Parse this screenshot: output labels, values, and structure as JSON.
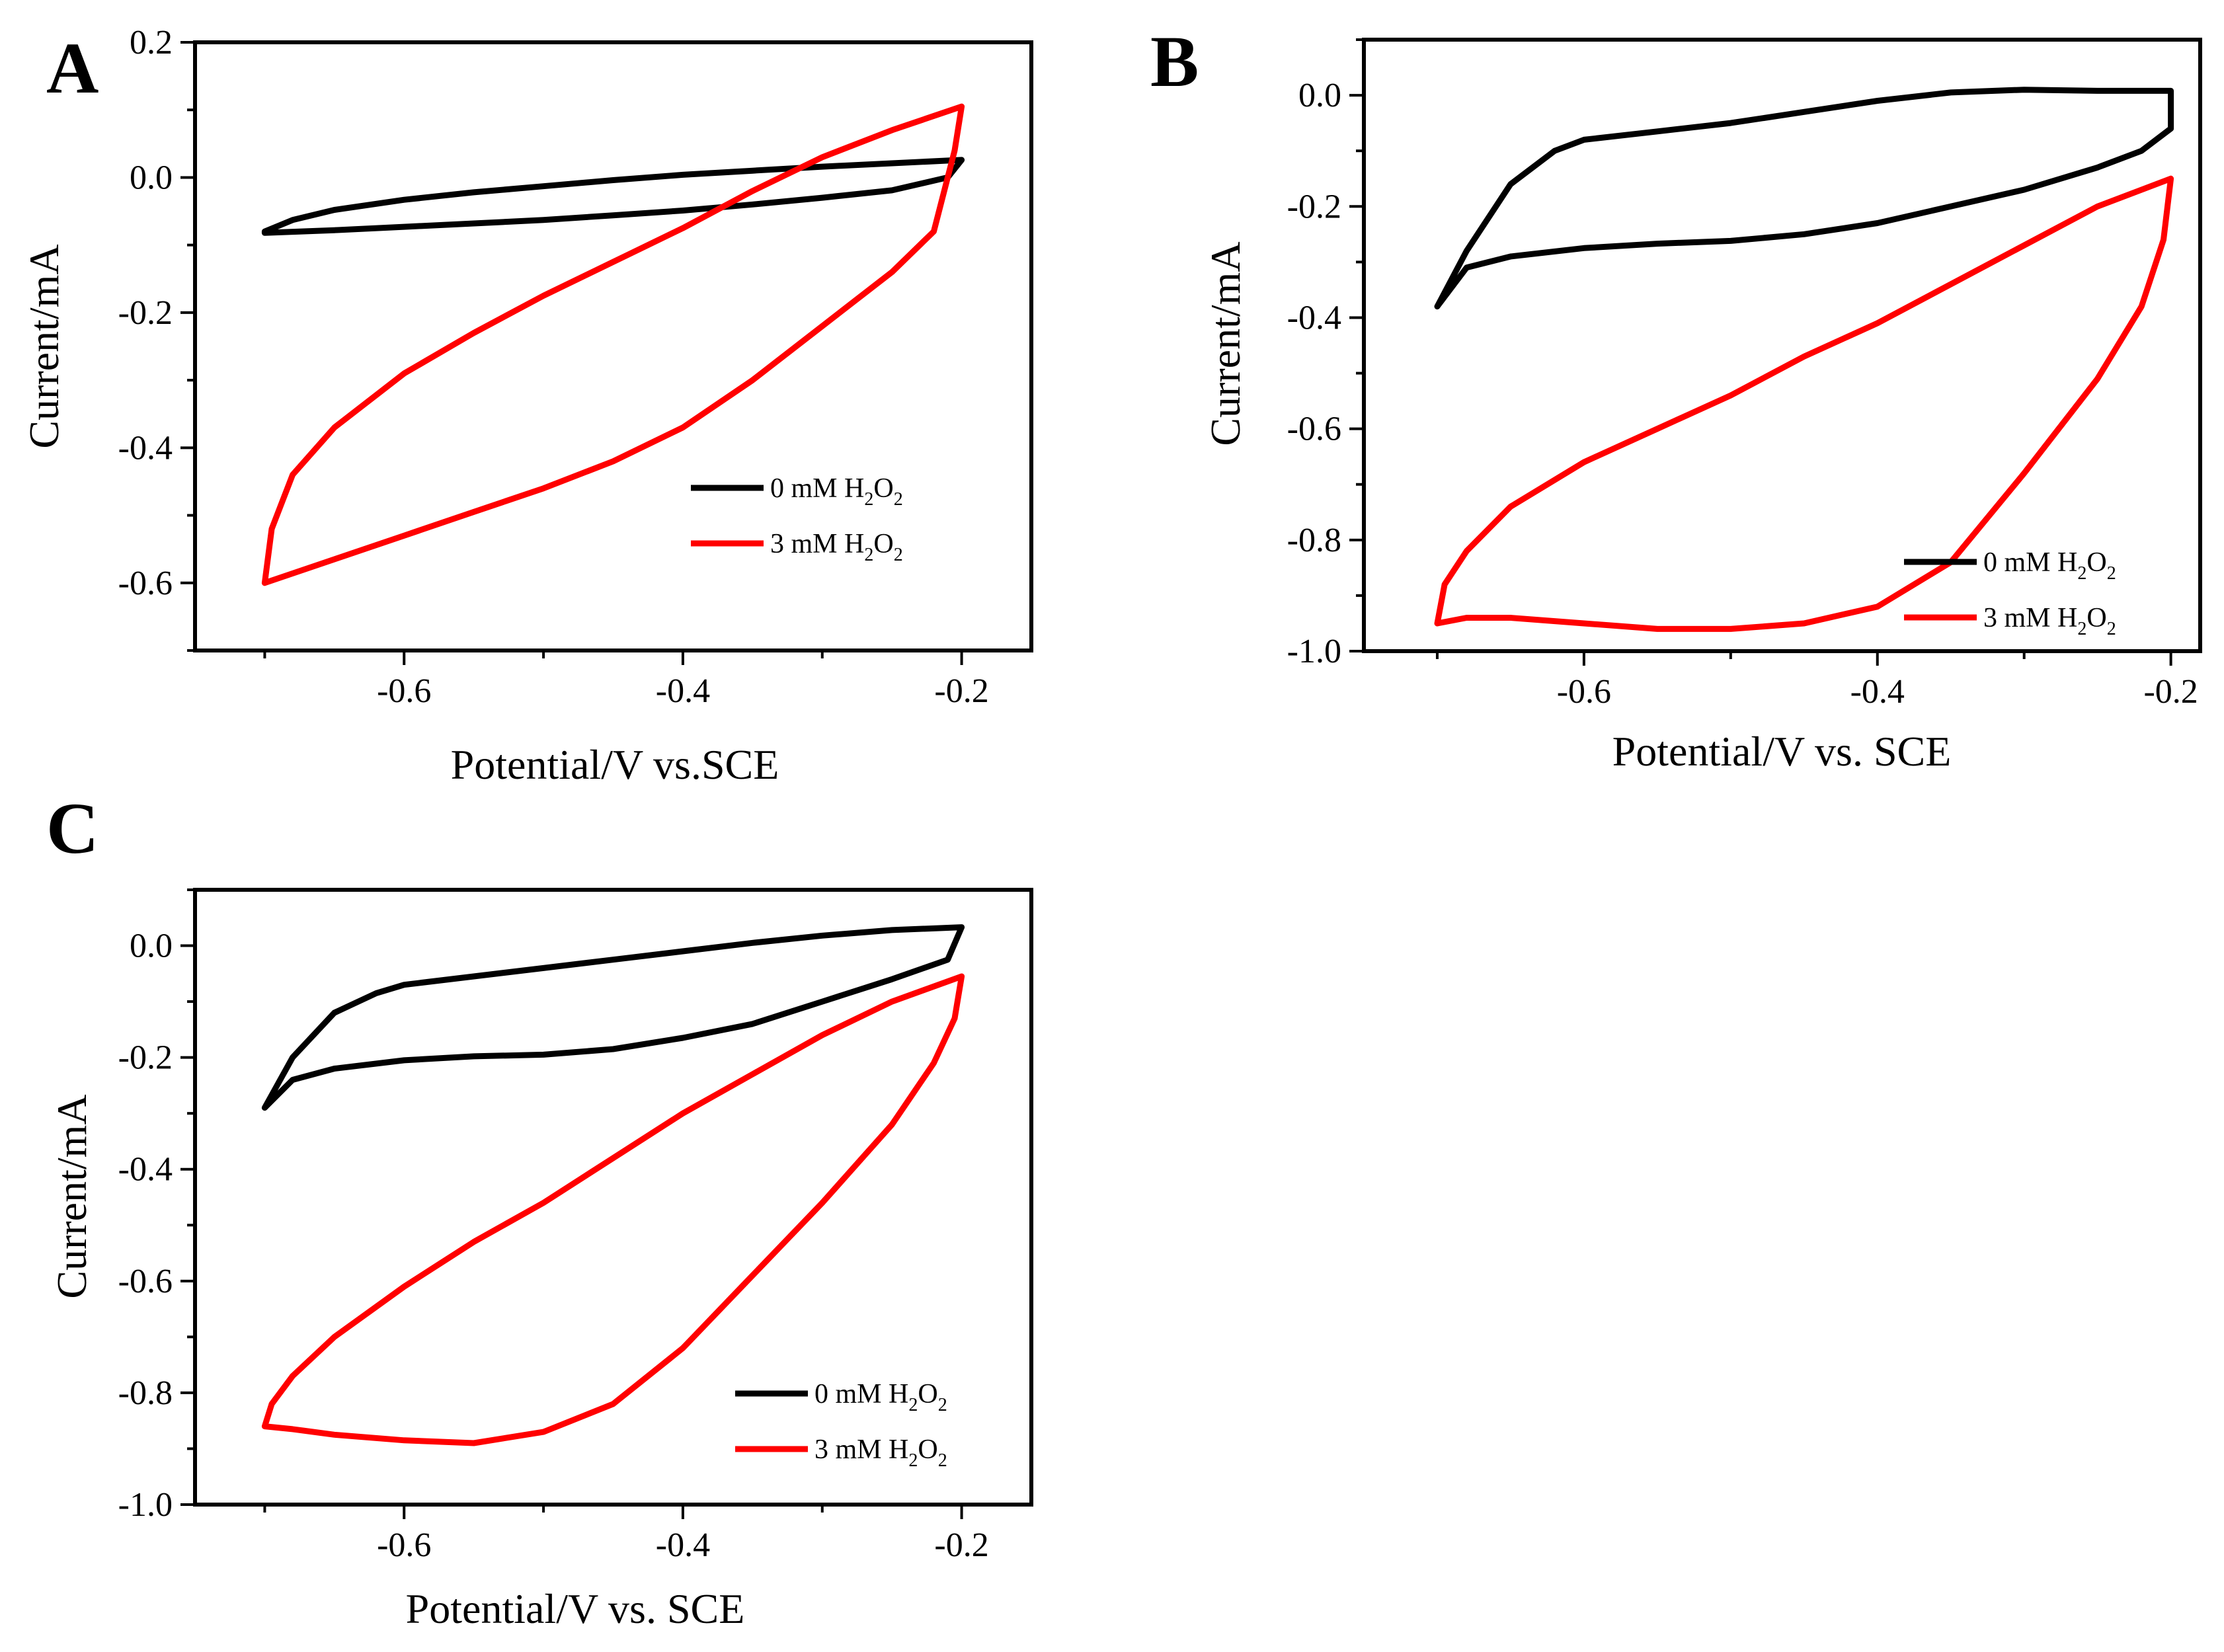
{
  "chart_data": [
    {
      "panel": "A",
      "type": "line",
      "xlabel": "Potential/V vs.SCE",
      "ylabel": "Current/mA",
      "xlim": [
        -0.75,
        -0.15
      ],
      "ylim": [
        -0.7,
        0.2
      ],
      "xticks": [
        -0.6,
        -0.4,
        -0.2
      ],
      "xtick_labels": [
        "-0.6",
        "-0.4",
        "-0.2"
      ],
      "yticks": [
        0.2,
        0.0,
        -0.2,
        -0.4,
        -0.6
      ],
      "ytick_labels": [
        "0.2",
        "0.0",
        "-0.2",
        "-0.4",
        "-0.6"
      ],
      "legend_position": "lower-right",
      "series": [
        {
          "name": "0 mM H2O2",
          "label_parts": [
            "0 mM H",
            "2",
            "O",
            "2"
          ],
          "color": "#000000",
          "x": [
            -0.7,
            -0.68,
            -0.65,
            -0.6,
            -0.55,
            -0.5,
            -0.45,
            -0.4,
            -0.35,
            -0.3,
            -0.25,
            -0.2,
            -0.21,
            -0.25,
            -0.3,
            -0.35,
            -0.4,
            -0.45,
            -0.5,
            -0.55,
            -0.6,
            -0.65,
            -0.7,
            -0.7
          ],
          "y": [
            -0.08,
            -0.063,
            -0.048,
            -0.033,
            -0.022,
            -0.013,
            -0.004,
            0.004,
            0.01,
            0.016,
            0.021,
            0.026,
            0.0,
            -0.019,
            -0.03,
            -0.04,
            -0.049,
            -0.056,
            -0.063,
            -0.068,
            -0.073,
            -0.078,
            -0.082,
            -0.08
          ]
        },
        {
          "name": "3 mM H2O2",
          "label_parts": [
            "3 mM H",
            "2",
            "O",
            "2"
          ],
          "color": "#ff0000",
          "x": [
            -0.7,
            -0.695,
            -0.68,
            -0.65,
            -0.6,
            -0.55,
            -0.5,
            -0.45,
            -0.4,
            -0.35,
            -0.3,
            -0.25,
            -0.2,
            -0.205,
            -0.21,
            -0.22,
            -0.25,
            -0.3,
            -0.35,
            -0.4,
            -0.45,
            -0.5,
            -0.55,
            -0.6,
            -0.65,
            -0.7
          ],
          "y": [
            -0.6,
            -0.52,
            -0.44,
            -0.37,
            -0.29,
            -0.23,
            -0.175,
            -0.125,
            -0.075,
            -0.02,
            0.03,
            0.07,
            0.105,
            0.04,
            0.0,
            -0.08,
            -0.14,
            -0.22,
            -0.3,
            -0.37,
            -0.42,
            -0.46,
            -0.495,
            -0.53,
            -0.565,
            -0.6
          ]
        }
      ]
    },
    {
      "panel": "B",
      "type": "line",
      "xlabel": "Potential/V vs. SCE",
      "ylabel": "Current/mA",
      "xlim": [
        -0.75,
        -0.18
      ],
      "ylim": [
        -1.0,
        0.1
      ],
      "xticks": [
        -0.6,
        -0.4,
        -0.2
      ],
      "xtick_labels": [
        "-0.6",
        "-0.4",
        "-0.2"
      ],
      "yticks": [
        0.0,
        -0.2,
        -0.4,
        -0.6,
        -0.8,
        -1.0
      ],
      "ytick_labels": [
        "0.0",
        "-0.2",
        "-0.4",
        "-0.6",
        "-0.8",
        "-1.0"
      ],
      "legend_position": "lower-right",
      "series": [
        {
          "name": "0 mM H2O2",
          "label_parts": [
            "0 mM H",
            "2",
            "O",
            "2"
          ],
          "color": "#000000",
          "x": [
            -0.7,
            -0.68,
            -0.65,
            -0.62,
            -0.6,
            -0.55,
            -0.5,
            -0.45,
            -0.4,
            -0.35,
            -0.3,
            -0.25,
            -0.2,
            -0.2,
            -0.22,
            -0.25,
            -0.3,
            -0.35,
            -0.4,
            -0.45,
            -0.5,
            -0.55,
            -0.6,
            -0.65,
            -0.68,
            -0.7
          ],
          "y": [
            -0.38,
            -0.28,
            -0.16,
            -0.1,
            -0.08,
            -0.065,
            -0.05,
            -0.03,
            -0.01,
            0.005,
            0.01,
            0.008,
            0.008,
            -0.06,
            -0.1,
            -0.13,
            -0.17,
            -0.2,
            -0.23,
            -0.25,
            -0.262,
            -0.267,
            -0.275,
            -0.29,
            -0.31,
            -0.38
          ]
        },
        {
          "name": "3 mM H2O2",
          "label_parts": [
            "3 mM H",
            "2",
            "O",
            "2"
          ],
          "color": "#ff0000",
          "x": [
            -0.7,
            -0.695,
            -0.68,
            -0.65,
            -0.6,
            -0.55,
            -0.5,
            -0.45,
            -0.4,
            -0.35,
            -0.3,
            -0.25,
            -0.2,
            -0.205,
            -0.22,
            -0.25,
            -0.3,
            -0.35,
            -0.4,
            -0.45,
            -0.5,
            -0.55,
            -0.6,
            -0.65,
            -0.68,
            -0.7
          ],
          "y": [
            -0.95,
            -0.88,
            -0.82,
            -0.74,
            -0.66,
            -0.6,
            -0.54,
            -0.47,
            -0.41,
            -0.34,
            -0.27,
            -0.2,
            -0.15,
            -0.26,
            -0.38,
            -0.51,
            -0.68,
            -0.84,
            -0.92,
            -0.95,
            -0.96,
            -0.96,
            -0.95,
            -0.94,
            -0.94,
            -0.95
          ]
        }
      ]
    },
    {
      "panel": "C",
      "type": "line",
      "xlabel": "Potential/V vs. SCE",
      "ylabel": "Current/mA",
      "xlim": [
        -0.75,
        -0.15
      ],
      "ylim": [
        -1.0,
        0.1
      ],
      "xticks": [
        -0.6,
        -0.4,
        -0.2
      ],
      "xtick_labels": [
        "-0.6",
        "-0.4",
        "-0.2"
      ],
      "yticks": [
        0.0,
        -0.2,
        -0.4,
        -0.6,
        -0.8,
        -1.0
      ],
      "ytick_labels": [
        "0.0",
        "-0.2",
        "-0.4",
        "-0.6",
        "-0.8",
        "-1.0"
      ],
      "legend_position": "lower-right",
      "series": [
        {
          "name": "0 mM H2O2",
          "label_parts": [
            "0 mM H",
            "2",
            "O",
            "2"
          ],
          "color": "#000000",
          "x": [
            -0.7,
            -0.68,
            -0.65,
            -0.62,
            -0.6,
            -0.55,
            -0.5,
            -0.45,
            -0.4,
            -0.35,
            -0.3,
            -0.25,
            -0.2,
            -0.21,
            -0.25,
            -0.3,
            -0.35,
            -0.4,
            -0.45,
            -0.5,
            -0.55,
            -0.6,
            -0.65,
            -0.68,
            -0.7
          ],
          "y": [
            -0.29,
            -0.2,
            -0.12,
            -0.085,
            -0.07,
            -0.055,
            -0.04,
            -0.025,
            -0.01,
            0.005,
            0.018,
            0.028,
            0.033,
            -0.025,
            -0.06,
            -0.1,
            -0.14,
            -0.165,
            -0.185,
            -0.195,
            -0.198,
            -0.205,
            -0.22,
            -0.24,
            -0.29
          ]
        },
        {
          "name": "3 mM H2O2",
          "label_parts": [
            "3 mM H",
            "2",
            "O",
            "2"
          ],
          "color": "#ff0000",
          "x": [
            -0.7,
            -0.695,
            -0.68,
            -0.65,
            -0.6,
            -0.55,
            -0.5,
            -0.45,
            -0.4,
            -0.35,
            -0.3,
            -0.25,
            -0.2,
            -0.205,
            -0.22,
            -0.25,
            -0.3,
            -0.35,
            -0.4,
            -0.45,
            -0.5,
            -0.55,
            -0.6,
            -0.65,
            -0.68,
            -0.7
          ],
          "y": [
            -0.86,
            -0.82,
            -0.77,
            -0.7,
            -0.61,
            -0.53,
            -0.46,
            -0.38,
            -0.3,
            -0.23,
            -0.16,
            -0.1,
            -0.055,
            -0.13,
            -0.21,
            -0.32,
            -0.46,
            -0.59,
            -0.72,
            -0.82,
            -0.87,
            -0.89,
            -0.885,
            -0.875,
            -0.865,
            -0.86
          ]
        }
      ]
    }
  ]
}
